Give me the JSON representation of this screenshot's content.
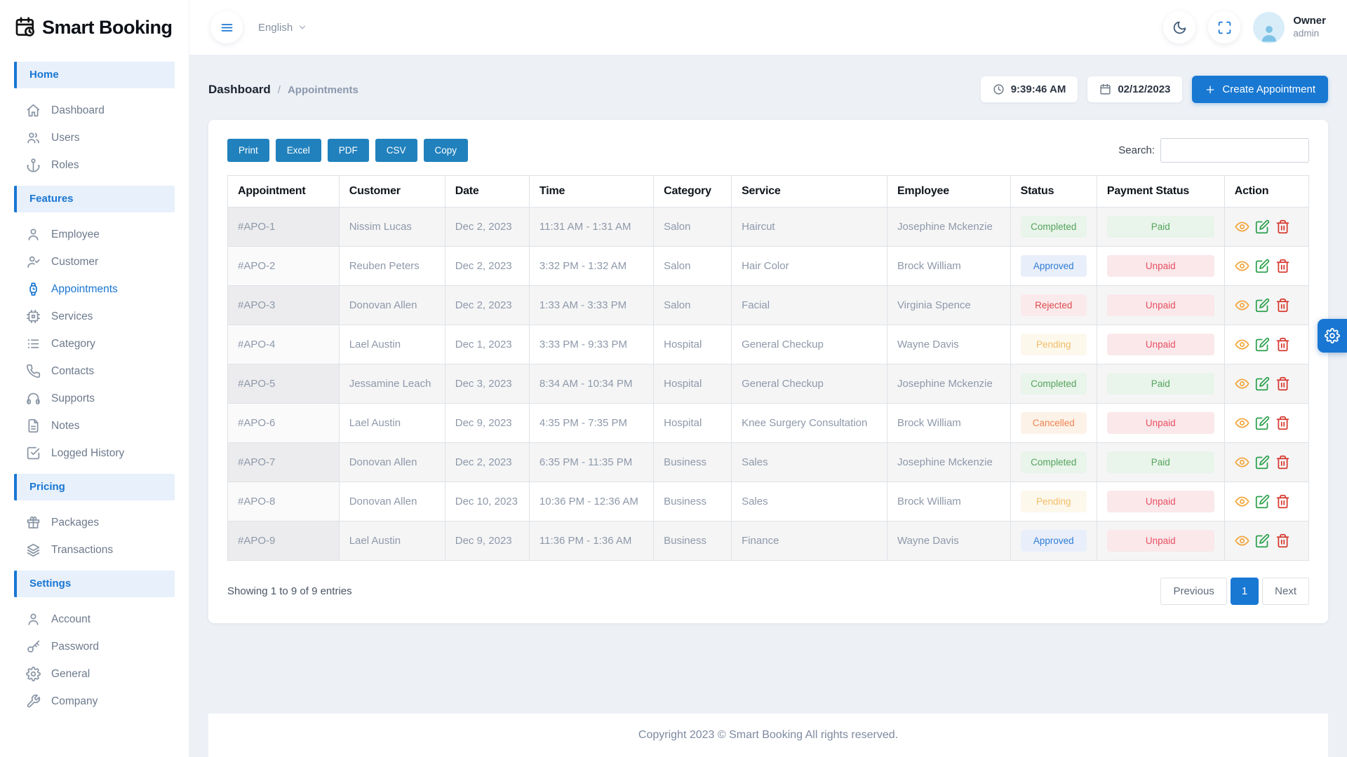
{
  "app": {
    "name": "Smart Booking",
    "footer_text": "Copyright 2023 © Smart Booking All rights reserved."
  },
  "topbar": {
    "language": "English",
    "user": {
      "role": "Owner",
      "name": "admin"
    }
  },
  "breadcrumb": {
    "root": "Dashboard",
    "separator": "/",
    "page": "Appointments",
    "time": "9:39:46 AM",
    "date": "02/12/2023",
    "create_button_label": "Create Appointment"
  },
  "sidebar": {
    "sections": [
      {
        "label": "Home",
        "items": [
          {
            "label": "Dashboard",
            "icon": "home-icon",
            "active": false
          },
          {
            "label": "Users",
            "icon": "users-icon",
            "active": false
          },
          {
            "label": "Roles",
            "icon": "anchor-icon",
            "active": false
          }
        ]
      },
      {
        "label": "Features",
        "items": [
          {
            "label": "Employee",
            "icon": "user-icon",
            "active": false
          },
          {
            "label": "Customer",
            "icon": "user-check-icon",
            "active": false
          },
          {
            "label": "Appointments",
            "icon": "watch-icon",
            "active": true
          },
          {
            "label": "Services",
            "icon": "chip-icon",
            "active": false
          },
          {
            "label": "Category",
            "icon": "list-icon",
            "active": false
          },
          {
            "label": "Contacts",
            "icon": "phone-icon",
            "active": false
          },
          {
            "label": "Supports",
            "icon": "headphones-icon",
            "active": false
          },
          {
            "label": "Notes",
            "icon": "file-icon",
            "active": false
          },
          {
            "label": "Logged History",
            "icon": "check-square-icon",
            "active": false
          }
        ]
      },
      {
        "label": "Pricing",
        "items": [
          {
            "label": "Packages",
            "icon": "gift-icon",
            "active": false
          },
          {
            "label": "Transactions",
            "icon": "layers-icon",
            "active": false
          }
        ]
      },
      {
        "label": "Settings",
        "items": [
          {
            "label": "Account",
            "icon": "user-icon",
            "active": false
          },
          {
            "label": "Password",
            "icon": "key-icon",
            "active": false
          },
          {
            "label": "General",
            "icon": "gear-icon",
            "active": false
          },
          {
            "label": "Company",
            "icon": "wrench-icon",
            "active": false
          }
        ]
      }
    ]
  },
  "toolbar": {
    "export_buttons": [
      "Print",
      "Excel",
      "PDF",
      "CSV",
      "Copy"
    ],
    "search_label": "Search:",
    "search_value": ""
  },
  "table": {
    "columns": [
      "Appointment",
      "Customer",
      "Date",
      "Time",
      "Category",
      "Service",
      "Employee",
      "Status",
      "Payment Status",
      "Action"
    ],
    "rows": [
      {
        "id": "#APO-1",
        "customer": "Nissim Lucas",
        "date": "Dec 2, 2023",
        "time": "11:31 AM - 1:31 AM",
        "category": "Salon",
        "service": "Haircut",
        "employee": "Josephine Mckenzie",
        "status": {
          "label": "Completed",
          "key": "completed"
        },
        "payment": {
          "label": "Paid",
          "key": "paid"
        }
      },
      {
        "id": "#APO-2",
        "customer": "Reuben Peters",
        "date": "Dec 2, 2023",
        "time": "3:32 PM - 1:32 AM",
        "category": "Salon",
        "service": "Hair Color",
        "employee": "Brock William",
        "status": {
          "label": "Approved",
          "key": "approved"
        },
        "payment": {
          "label": "Unpaid",
          "key": "unpaid"
        }
      },
      {
        "id": "#APO-3",
        "customer": "Donovan Allen",
        "date": "Dec 2, 2023",
        "time": "1:33 AM - 3:33 PM",
        "category": "Salon",
        "service": "Facial",
        "employee": "Virginia Spence",
        "status": {
          "label": "Rejected",
          "key": "rejected"
        },
        "payment": {
          "label": "Unpaid",
          "key": "unpaid"
        }
      },
      {
        "id": "#APO-4",
        "customer": "Lael Austin",
        "date": "Dec 1, 2023",
        "time": "3:33 PM - 9:33 PM",
        "category": "Hospital",
        "service": "General Checkup",
        "employee": "Wayne Davis",
        "status": {
          "label": "Pending",
          "key": "pending"
        },
        "payment": {
          "label": "Unpaid",
          "key": "unpaid"
        }
      },
      {
        "id": "#APO-5",
        "customer": "Jessamine Leach",
        "date": "Dec 3, 2023",
        "time": "8:34 AM - 10:34 PM",
        "category": "Hospital",
        "service": "General Checkup",
        "employee": "Josephine Mckenzie",
        "status": {
          "label": "Completed",
          "key": "completed"
        },
        "payment": {
          "label": "Paid",
          "key": "paid"
        }
      },
      {
        "id": "#APO-6",
        "customer": "Lael Austin",
        "date": "Dec 9, 2023",
        "time": "4:35 PM - 7:35 PM",
        "category": "Hospital",
        "service": "Knee Surgery Consultation",
        "employee": "Brock William",
        "status": {
          "label": "Cancelled",
          "key": "cancelled"
        },
        "payment": {
          "label": "Unpaid",
          "key": "unpaid"
        }
      },
      {
        "id": "#APO-7",
        "customer": "Donovan Allen",
        "date": "Dec 2, 2023",
        "time": "6:35 PM - 11:35 PM",
        "category": "Business",
        "service": "Sales",
        "employee": "Josephine Mckenzie",
        "status": {
          "label": "Completed",
          "key": "completed"
        },
        "payment": {
          "label": "Paid",
          "key": "paid"
        }
      },
      {
        "id": "#APO-8",
        "customer": "Donovan Allen",
        "date": "Dec 10, 2023",
        "time": "10:36 PM - 12:36 AM",
        "category": "Business",
        "service": "Sales",
        "employee": "Brock William",
        "status": {
          "label": "Pending",
          "key": "pending"
        },
        "payment": {
          "label": "Unpaid",
          "key": "unpaid"
        }
      },
      {
        "id": "#APO-9",
        "customer": "Lael Austin",
        "date": "Dec 9, 2023",
        "time": "11:36 PM - 1:36 AM",
        "category": "Business",
        "service": "Finance",
        "employee": "Wayne Davis",
        "status": {
          "label": "Approved",
          "key": "approved"
        },
        "payment": {
          "label": "Unpaid",
          "key": "unpaid"
        }
      }
    ]
  },
  "table_footer": {
    "entries_info": "Showing 1 to 9 of 9 entries",
    "pagination": {
      "previous": "Previous",
      "current": "1",
      "next": "Next"
    }
  },
  "colors": {
    "primary": "#1878d2",
    "sidebar_accent": "#1976d2",
    "export_button": "#2181bd",
    "status_completed": "#53a45c",
    "status_approved": "#2e7cd6",
    "status_rejected": "#dd4c4c",
    "status_pending": "#f2bd68",
    "status_cancelled": "#ee8450",
    "payment_paid": "#53a45c",
    "payment_unpaid": "#e84f63"
  }
}
